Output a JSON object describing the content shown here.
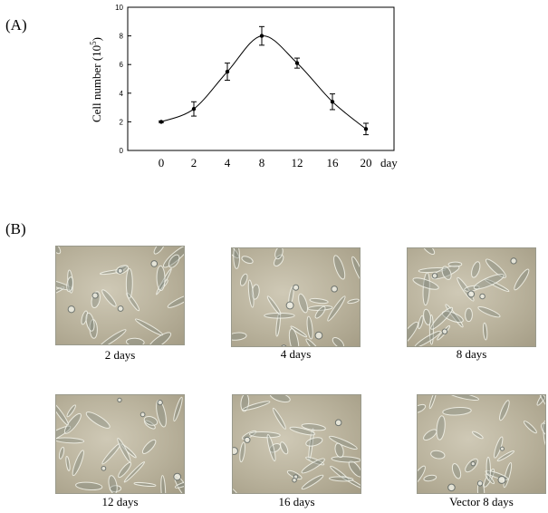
{
  "panel_labels": {
    "a": "(A)",
    "b": "(B)"
  },
  "chart_data": {
    "type": "line",
    "categories": [
      "0",
      "2",
      "4",
      "8",
      "12",
      "16",
      "20"
    ],
    "x_unit_label": "day",
    "series": [
      {
        "values": [
          2.0,
          2.9,
          5.5,
          8.0,
          6.1,
          3.4,
          1.5
        ],
        "error": [
          0.05,
          0.5,
          0.6,
          0.65,
          0.35,
          0.55,
          0.4
        ]
      }
    ],
    "ylabel_base": "Cell number (10",
    "ylabel_exp": "5",
    "ylabel_close": ")",
    "yticks": [
      "0",
      "2",
      "4",
      "6",
      "8",
      "10"
    ],
    "ylim": [
      0,
      10
    ],
    "title": "",
    "xlabel": "",
    "grid": false,
    "smooth": true
  },
  "micrographs": [
    {
      "caption": "2 days"
    },
    {
      "caption": "4 days"
    },
    {
      "caption": "8 days"
    },
    {
      "caption": "12 days"
    },
    {
      "caption": "16 days"
    },
    {
      "caption": "Vector 8 days"
    }
  ]
}
